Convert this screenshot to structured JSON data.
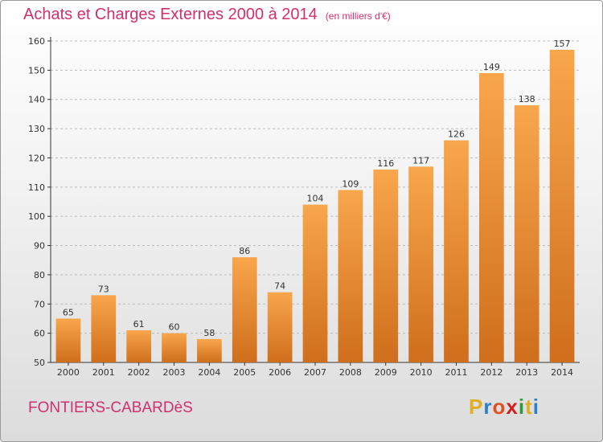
{
  "title": "Achats et Charges Externes 2000 à 2014",
  "subtitle": "(en milliers d'€)",
  "commune": "FONTIERS-CABARDèS",
  "logo": {
    "letters": [
      "P",
      "r",
      "o",
      "x",
      "i",
      "t",
      "i"
    ],
    "colors": [
      "#e0b020",
      "#2a7fc8",
      "#e05020",
      "#d02020",
      "#2a9a40",
      "#e0b020",
      "#2a7fc8"
    ]
  },
  "colors": {
    "title": "#d0306e",
    "bar_light": "#f8a64c",
    "bar_dark": "#cf6e1c"
  },
  "chart_data": {
    "type": "bar",
    "title": "Achats et Charges Externes 2000 à 2014",
    "subtitle": "(en milliers d'€)",
    "categories": [
      "2000",
      "2001",
      "2002",
      "2003",
      "2004",
      "2005",
      "2006",
      "2007",
      "2008",
      "2009",
      "2010",
      "2011",
      "2012",
      "2013",
      "2014"
    ],
    "values": [
      65,
      73,
      61,
      60,
      58,
      86,
      74,
      104,
      109,
      116,
      117,
      126,
      149,
      138,
      157
    ],
    "ylim": [
      50,
      160
    ],
    "yticks": [
      50,
      60,
      70,
      80,
      90,
      100,
      110,
      120,
      130,
      140,
      150,
      160
    ],
    "grid": true,
    "xlabel": "",
    "ylabel": ""
  }
}
